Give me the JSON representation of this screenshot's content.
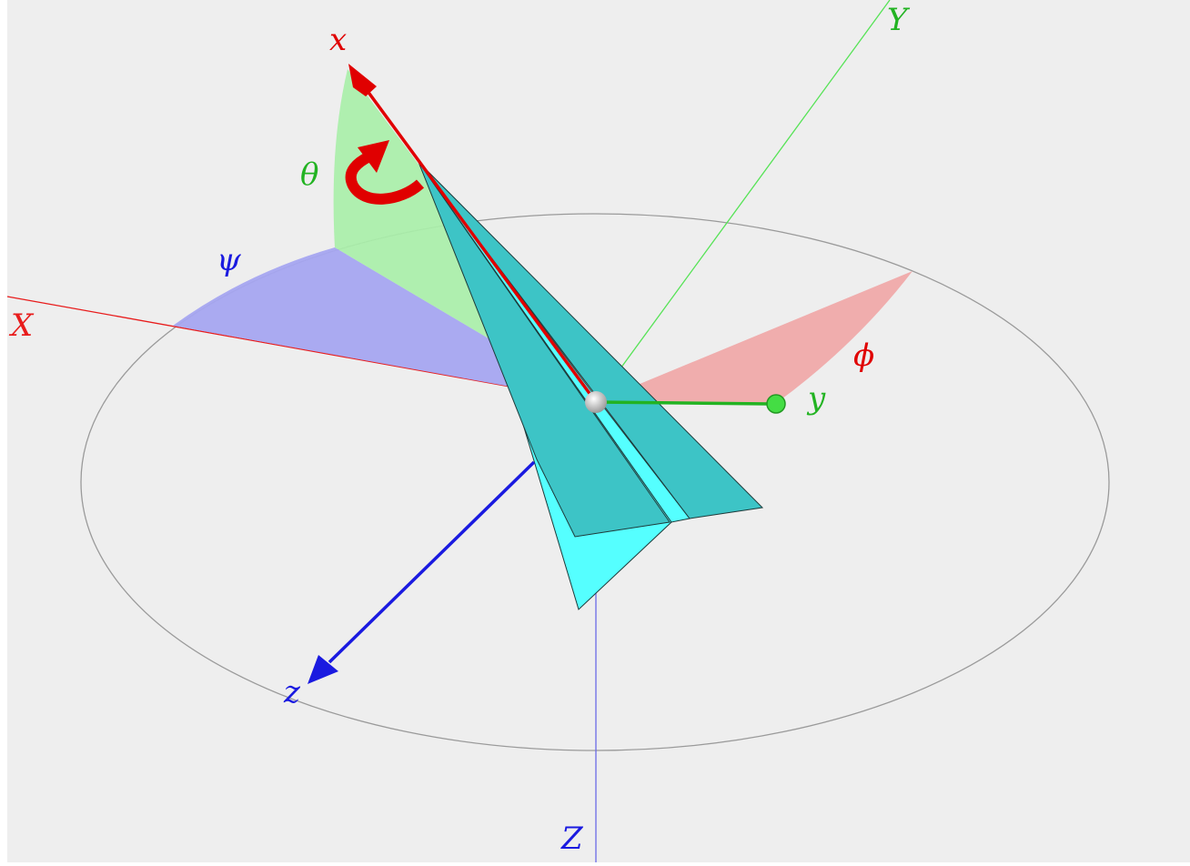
{
  "colors": {
    "background": "#eeeeee",
    "world_X": "#e81c1c",
    "world_Y": "#55e355",
    "world_Z": "#6a6ae6",
    "body_x": "#e00000",
    "body_y": "#22b322",
    "body_z": "#1a1ae0",
    "psi_sector": "#a5a5f0",
    "theta_sector": "#a9efa9",
    "phi_sector": "#f0a5a5",
    "plane_light": "#55ffff",
    "plane_dark": "#3dc4c6",
    "horizon_circle": "#9a9a9a"
  },
  "labels": {
    "world_X": "X",
    "world_Y": "Y",
    "world_Z": "Z",
    "body_x": "x",
    "body_y": "y",
    "body_z": "z",
    "psi": "ψ",
    "theta": "θ",
    "phi": "ϕ"
  },
  "icons": {
    "rotation_arrow": "curved-rotation-arrow-icon",
    "origin": "sphere-icon"
  }
}
